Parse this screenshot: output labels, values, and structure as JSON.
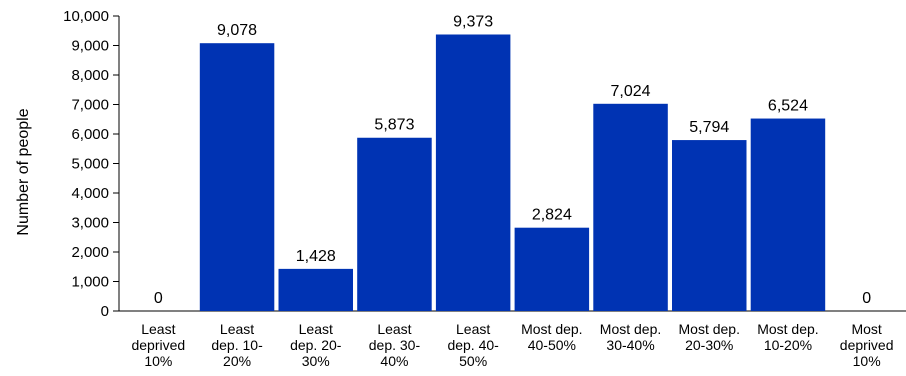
{
  "chart_data": {
    "type": "bar",
    "categories": [
      [
        "Least",
        "deprived",
        "10%"
      ],
      [
        "Least",
        "dep. 10-",
        "20%"
      ],
      [
        "Least",
        "dep. 20-",
        "30%"
      ],
      [
        "Least",
        "dep. 30-",
        "40%"
      ],
      [
        "Least",
        "dep. 40-",
        "50%"
      ],
      [
        "Most dep.",
        "40-50%"
      ],
      [
        "Most dep.",
        "30-40%"
      ],
      [
        "Most dep.",
        "20-30%"
      ],
      [
        "Most dep.",
        "10-20%"
      ],
      [
        "Most",
        "deprived",
        "10%"
      ]
    ],
    "values": [
      0,
      9078,
      1428,
      5873,
      9373,
      2824,
      7024,
      5794,
      6524,
      0
    ],
    "data_labels": [
      "0",
      "9,078",
      "1,428",
      "5,873",
      "9,373",
      "2,824",
      "7,024",
      "5,794",
      "6,524",
      "0"
    ],
    "ylabel": "Number of people",
    "ylim": [
      0,
      10000
    ],
    "yticks": [
      0,
      1000,
      2000,
      3000,
      4000,
      5000,
      6000,
      7000,
      8000,
      9000,
      10000
    ],
    "ytick_labels": [
      "0",
      "1,000",
      "2,000",
      "3,000",
      "4,000",
      "5,000",
      "6,000",
      "7,000",
      "8,000",
      "9,000",
      "10,000"
    ],
    "bar_color": "#0033b3",
    "grid": false,
    "legend": "none"
  }
}
